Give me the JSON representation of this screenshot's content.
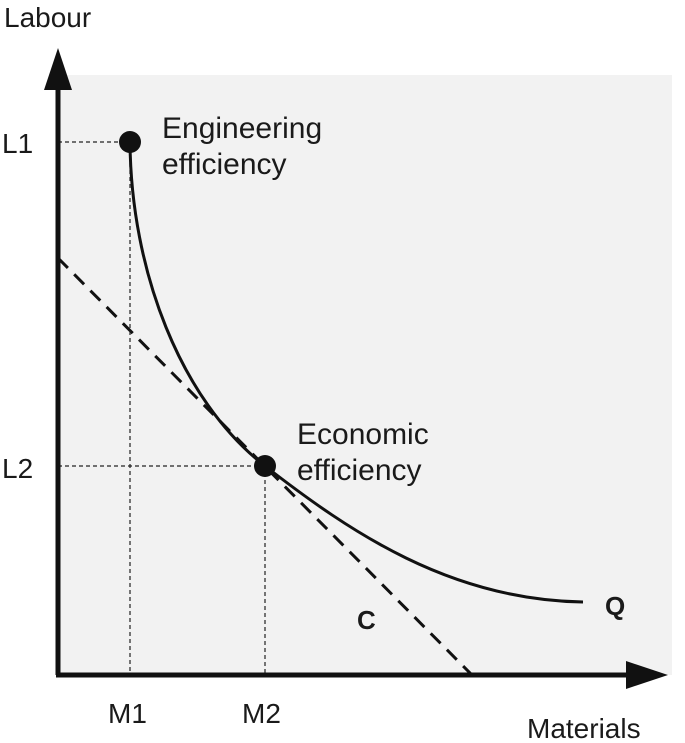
{
  "chart_data": {
    "type": "line",
    "xlabel": "Materials",
    "ylabel": "Labour",
    "xticks": [
      {
        "label": "M1",
        "value": 1
      },
      {
        "label": "M2",
        "value": 2
      }
    ],
    "yticks": [
      {
        "label": "L1",
        "value": 1
      },
      {
        "label": "L2",
        "value": 2
      }
    ],
    "series": [
      {
        "name": "Q",
        "kind": "isoquant-curve",
        "style": "solid"
      },
      {
        "name": "C",
        "kind": "isocost-line",
        "style": "dashed"
      }
    ],
    "points": [
      {
        "label": "Engineering efficiency",
        "label_lines": [
          "Engineering",
          "efficiency"
        ],
        "x_tick": "M1",
        "y_tick": "L1"
      },
      {
        "label": "Economic efficiency",
        "label_lines": [
          "Economic",
          "efficiency"
        ],
        "x_tick": "M2",
        "y_tick": "L2"
      }
    ],
    "colors": {
      "plot_background": "#f2f2f2",
      "ink": "#111111"
    }
  }
}
